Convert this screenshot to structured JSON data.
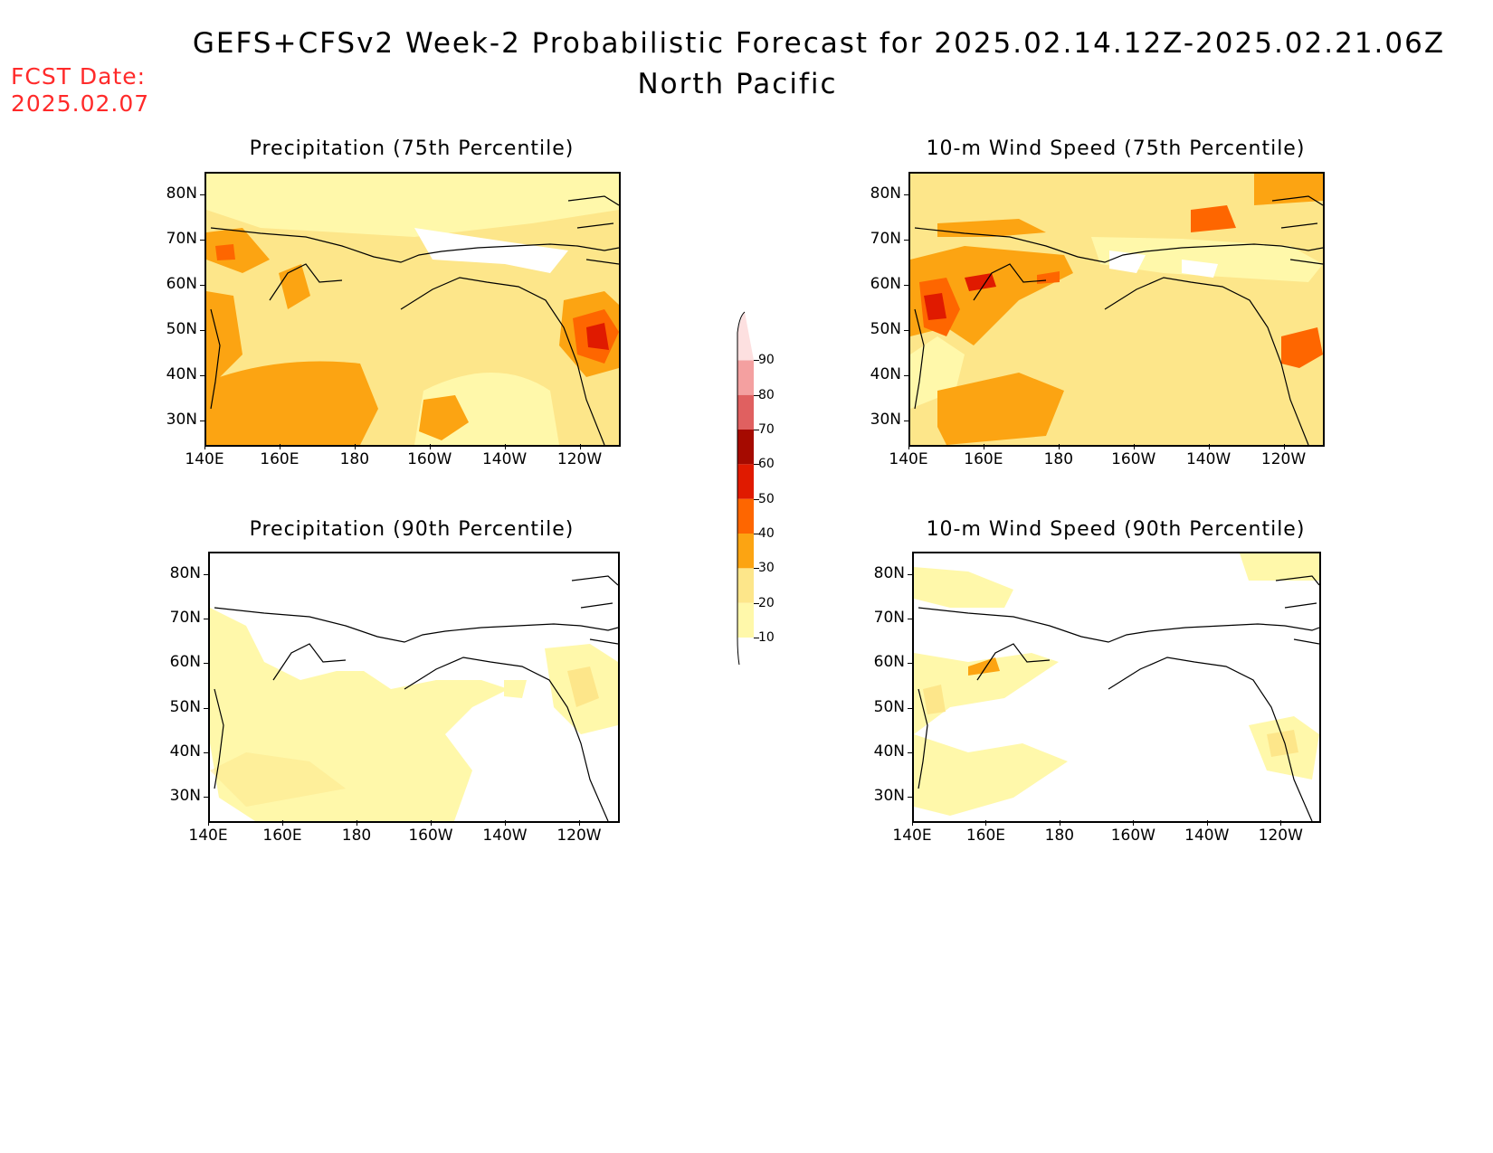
{
  "header": {
    "title": "GEFS+CFSv2 Week-2 Probabilistic Forecast for 2025.02.14.12Z-2025.02.21.06Z",
    "subtitle": "North Pacific",
    "fcst_label": "FCST Date:",
    "fcst_date": "2025.02.07"
  },
  "axes": {
    "lat_ticks": [
      "80N",
      "70N",
      "60N",
      "50N",
      "40N",
      "30N"
    ],
    "lon_ticks": [
      "140E",
      "160E",
      "180",
      "160W",
      "140W",
      "120W"
    ]
  },
  "panels": [
    {
      "title": "Precipitation (75th Percentile)"
    },
    {
      "title": "10-m Wind Speed (75th Percentile)"
    },
    {
      "title": "Precipitation (90th Percentile)"
    },
    {
      "title": "10-m Wind Speed (90th Percentile)"
    }
  ],
  "colorbar": {
    "levels": [
      "10",
      "20",
      "30",
      "40",
      "50",
      "60",
      "70",
      "80",
      "90"
    ],
    "colors": [
      "#fff8aa",
      "#fde68a",
      "#fca412",
      "#fe6600",
      "#e01a00",
      "#a50a00",
      "#e06060",
      "#f4a0a0",
      "#fde0e0"
    ]
  }
}
